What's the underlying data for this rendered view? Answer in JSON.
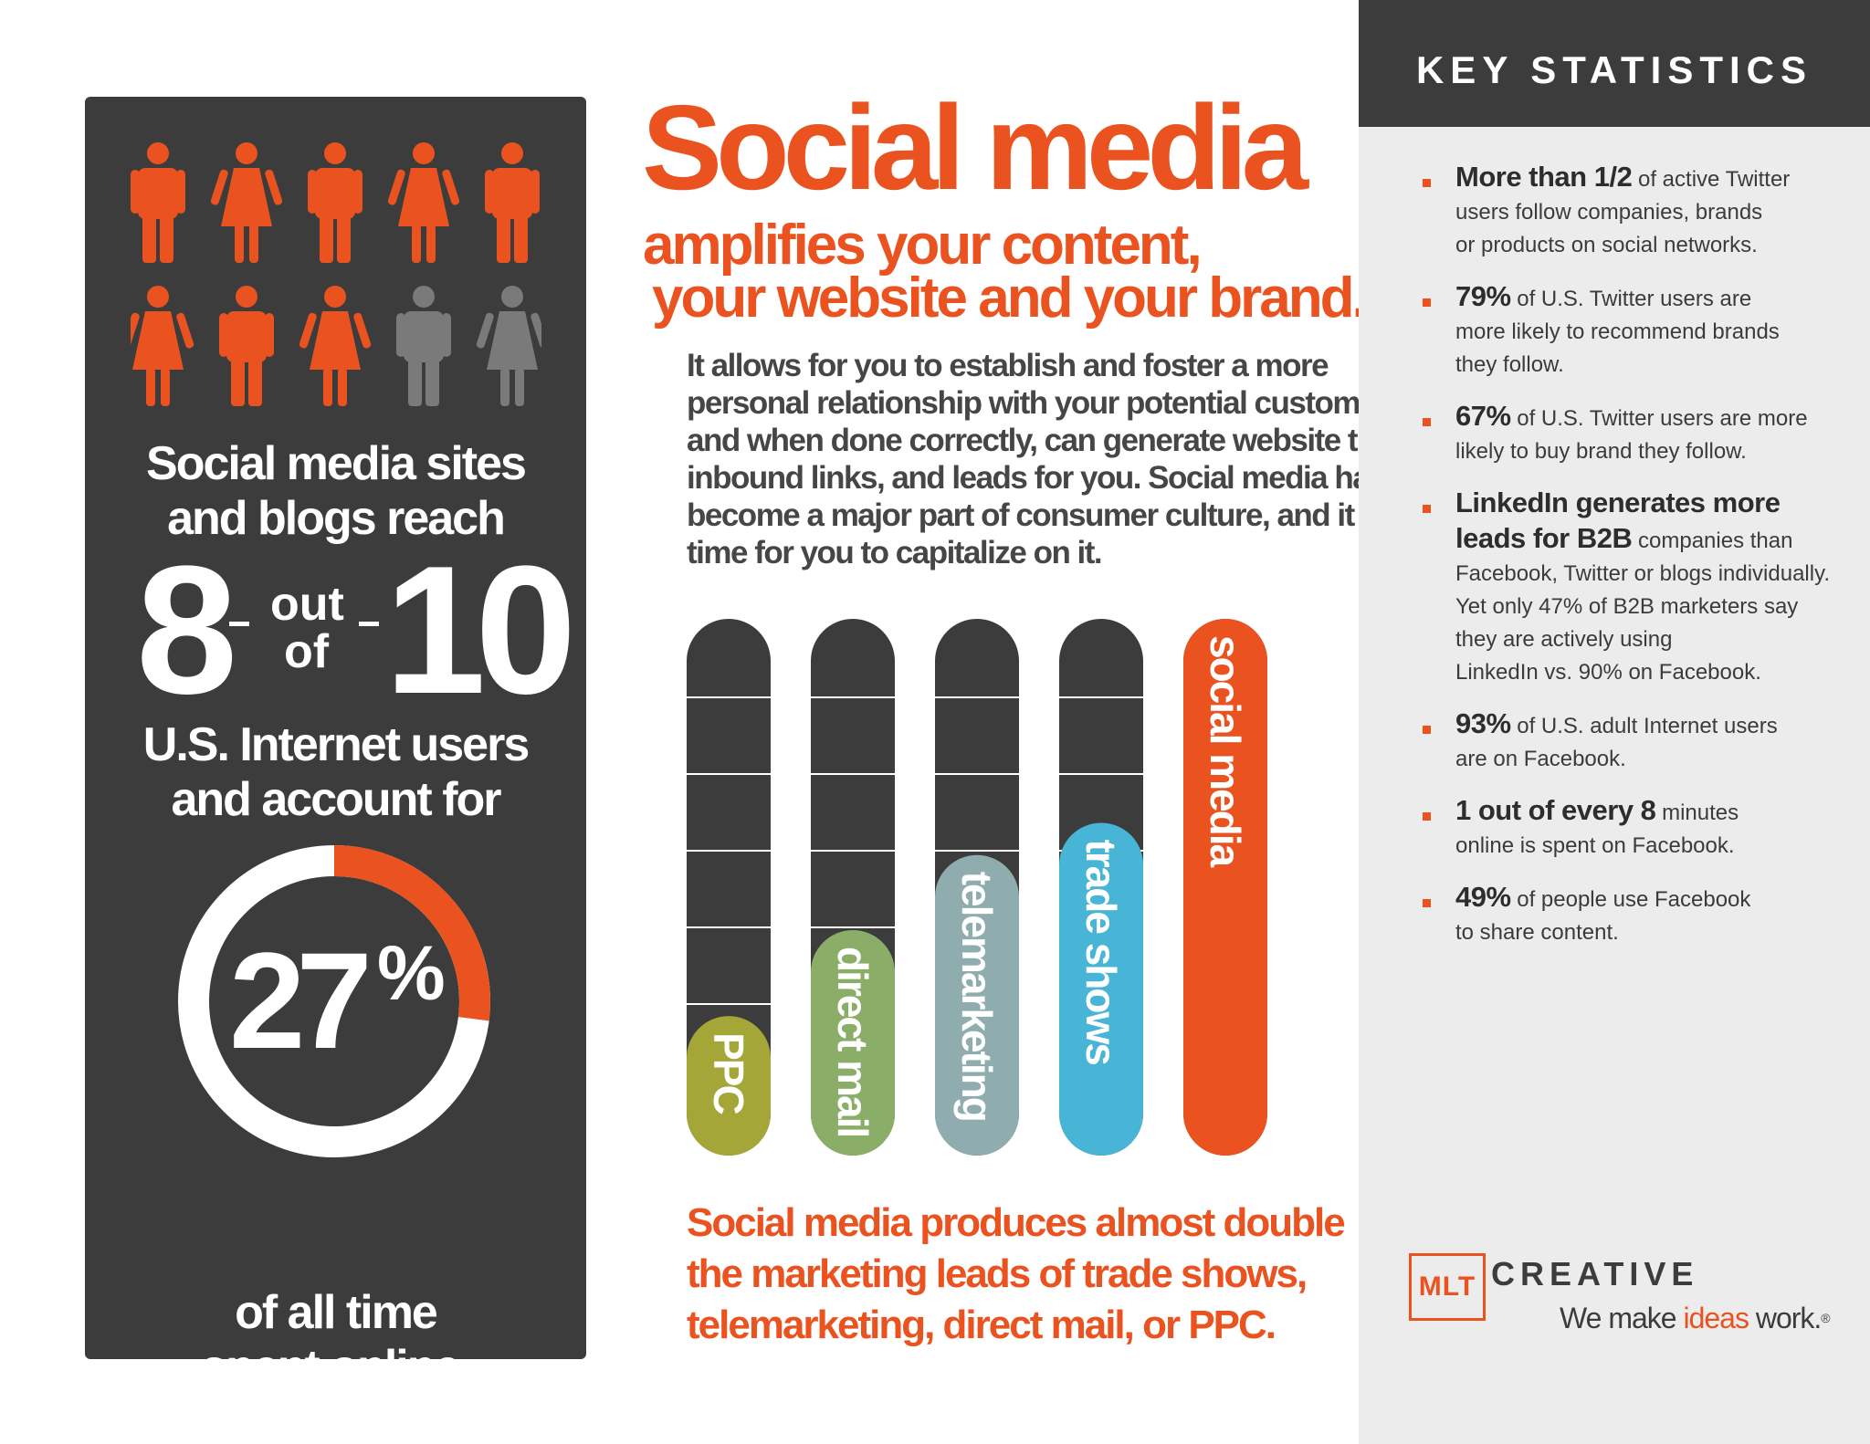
{
  "left_panel": {
    "reach_line1": "Social media sites",
    "reach_line2": "and blogs reach",
    "big_number_a": "8",
    "out_word": "out",
    "of_word": "of",
    "big_number_b": "10",
    "users_line1": "U.S. Internet users",
    "users_line2": "and account for",
    "pct_value": "27",
    "pct_sign": "%",
    "pct_fraction": 0.27,
    "time_line1": "of all time",
    "time_line2": "spent online.",
    "people": [
      {
        "type": "male",
        "highlighted": true
      },
      {
        "type": "female",
        "highlighted": true
      },
      {
        "type": "male",
        "highlighted": true
      },
      {
        "type": "female",
        "highlighted": true
      },
      {
        "type": "male",
        "highlighted": true
      },
      {
        "type": "female",
        "highlighted": true
      },
      {
        "type": "male",
        "highlighted": true
      },
      {
        "type": "female",
        "highlighted": true
      },
      {
        "type": "male",
        "highlighted": false
      },
      {
        "type": "female",
        "highlighted": false
      }
    ]
  },
  "center": {
    "title": "Social media",
    "subtitle_line1": "amplifies your content,",
    "subtitle_line2": "your website and your brand.",
    "body_lines": [
      "It allows for you to establish and foster a more",
      "personal relationship with your potential customers,",
      "and when done correctly, can generate website traffic,",
      "inbound links, and leads for you. Social media has",
      "become a major part of consumer culture, and it is",
      "time for you to capitalize on it."
    ],
    "caption_lines": [
      "Social media produces almost double",
      "the marketing leads of trade shows,",
      "telemarketing, direct mail, or PPC."
    ]
  },
  "chart_data": {
    "type": "bar",
    "categories": [
      "PPC",
      "direct mail",
      "telemarketing",
      "trade shows",
      "social media"
    ],
    "values": [
      0.26,
      0.42,
      0.56,
      0.62,
      1.0
    ],
    "ylim": [
      0,
      1
    ],
    "colors": [
      "#a4a637",
      "#8aae67",
      "#8fadae",
      "#48b4d6",
      "#ea5320"
    ],
    "track_color": "#3d3c3c",
    "grid": true
  },
  "right_panel": {
    "header": "KEY STATISTICS",
    "stats": [
      {
        "lines": [
          [
            {
              "t": "More than 1/2",
              "b": true
            },
            {
              "t": " of active Twitter",
              "b": false
            }
          ],
          [
            {
              "t": "users follow companies, brands",
              "b": false
            }
          ],
          [
            {
              "t": "or products on social networks.",
              "b": false
            }
          ]
        ]
      },
      {
        "lines": [
          [
            {
              "t": "79%",
              "b": true
            },
            {
              "t": " of U.S. Twitter users are",
              "b": false
            }
          ],
          [
            {
              "t": "more likely to recommend brands",
              "b": false
            }
          ],
          [
            {
              "t": "they follow.",
              "b": false
            }
          ]
        ]
      },
      {
        "lines": [
          [
            {
              "t": "67%",
              "b": true
            },
            {
              "t": " of U.S. Twitter users are more",
              "b": false
            }
          ],
          [
            {
              "t": "likely to buy brand they follow.",
              "b": false
            }
          ]
        ]
      },
      {
        "lines": [
          [
            {
              "t": "LinkedIn generates more",
              "b": true
            }
          ],
          [
            {
              "t": "leads for B2B",
              "b": true
            },
            {
              "t": " companies than",
              "b": false
            }
          ],
          [
            {
              "t": "Facebook, Twitter or blogs individually.",
              "b": false
            }
          ],
          [
            {
              "t": "Yet only 47% of B2B marketers say",
              "b": false
            }
          ],
          [
            {
              "t": "they are actively using",
              "b": false
            }
          ],
          [
            {
              "t": "LinkedIn vs. 90% on Facebook.",
              "b": false
            }
          ]
        ]
      },
      {
        "lines": [
          [
            {
              "t": "93%",
              "b": true
            },
            {
              "t": " of U.S. adult Internet users",
              "b": false
            }
          ],
          [
            {
              "t": "are on Facebook.",
              "b": false
            }
          ]
        ]
      },
      {
        "lines": [
          [
            {
              "t": "1 out of every 8",
              "b": true
            },
            {
              "t": " minutes",
              "b": false
            }
          ],
          [
            {
              "t": "online is spent on Facebook.",
              "b": false
            }
          ]
        ]
      },
      {
        "lines": [
          [
            {
              "t": "49%",
              "b": true
            },
            {
              "t": " of people use Facebook",
              "b": false
            }
          ],
          [
            {
              "t": "to share content.",
              "b": false
            }
          ]
        ]
      }
    ]
  },
  "logo": {
    "box_text": "MLT",
    "creative": "CREATIVE",
    "tagline_pre": "We make ",
    "tagline_hl": "ideas",
    "tagline_post": " work.",
    "reg": "®"
  },
  "colors": {
    "accent": "#ea5320",
    "dark": "#3d3c3c",
    "muted_person": "#7a7a7a",
    "panel_light": "#ececec"
  }
}
